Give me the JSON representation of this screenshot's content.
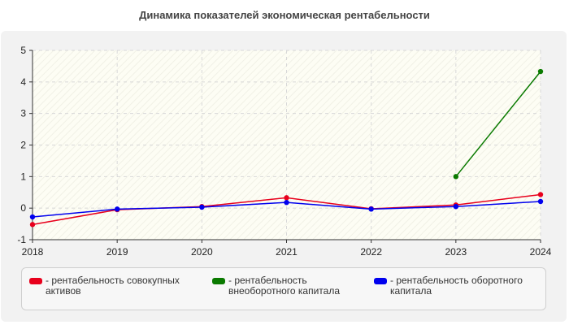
{
  "chart_data": {
    "type": "line",
    "title": "Динамика показателей экономическая рентабельности",
    "xlabel": "",
    "ylabel": "",
    "x": [
      "2018",
      "2019",
      "2020",
      "2021",
      "2022",
      "2023",
      "2024"
    ],
    "ylim": [
      -1,
      5
    ],
    "yticks": [
      -1,
      0,
      1,
      2,
      3,
      4,
      5
    ],
    "grid": true,
    "legend_position": "bottom",
    "series": [
      {
        "name": "- рентабельность совокупных\nактивов",
        "color": "#e8001c",
        "values": [
          -0.52,
          -0.05,
          0.05,
          0.33,
          -0.02,
          0.1,
          0.43
        ]
      },
      {
        "name": "- рентабельность\nвнеоборотного капитала",
        "color": "#0a7a00",
        "values": [
          null,
          null,
          null,
          null,
          null,
          1.0,
          4.33
        ]
      },
      {
        "name": "- рентабельность оборотного\nкапитала",
        "color": "#0000ee",
        "values": [
          -0.28,
          -0.03,
          0.03,
          0.18,
          -0.03,
          0.05,
          0.21
        ]
      }
    ]
  }
}
